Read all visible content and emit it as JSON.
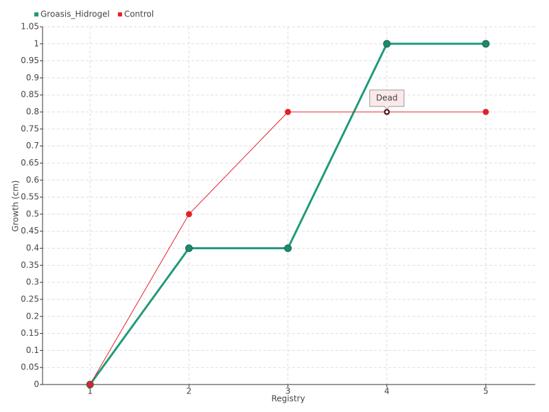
{
  "chart_data": {
    "type": "line",
    "x_label": "Registry",
    "y_label": "Growth (cm)",
    "x": [
      1,
      2,
      3,
      4,
      5
    ],
    "xlim": [
      0.52,
      5.5
    ],
    "xticks": [
      1,
      2,
      3,
      4,
      5
    ],
    "ylim": [
      0,
      1.05
    ],
    "yticks": [
      0,
      0.05,
      0.1,
      0.15,
      0.2,
      0.25,
      0.3,
      0.35,
      0.4,
      0.45,
      0.5,
      0.55,
      0.6,
      0.65,
      0.7,
      0.75,
      0.8,
      0.85,
      0.9,
      0.95,
      1,
      1.05
    ],
    "grid": true,
    "legend": "top-left",
    "series": [
      {
        "name": "Groasis_Hidrogel",
        "color": "#1f9a7a",
        "values": [
          0,
          0.4,
          0.4,
          1,
          1
        ]
      },
      {
        "name": "Control",
        "color": "#e3202a",
        "values": [
          0,
          0.5,
          0.8,
          0.8,
          0.8
        ]
      }
    ],
    "annotations": [
      {
        "text": "Dead",
        "x": 4,
        "y": 0.8
      }
    ]
  }
}
